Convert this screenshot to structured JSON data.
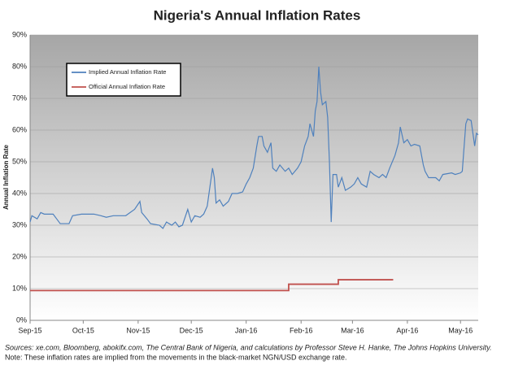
{
  "chart_data": {
    "type": "line",
    "title": "Nigeria's Annual Inflation Rates",
    "y_label": "Annual Inflation Rate",
    "xlim": [
      0,
      253
    ],
    "xticks": [
      {
        "value": 0,
        "label": "Sep-15"
      },
      {
        "value": 30,
        "label": "Oct-15"
      },
      {
        "value": 61,
        "label": "Nov-15"
      },
      {
        "value": 91,
        "label": "Dec-15"
      },
      {
        "value": 122,
        "label": "Jan-16"
      },
      {
        "value": 153,
        "label": "Feb-16"
      },
      {
        "value": 182,
        "label": "Mar-16"
      },
      {
        "value": 213,
        "label": "Apr-16"
      },
      {
        "value": 243,
        "label": "May-16"
      }
    ],
    "ylim": [
      0,
      90
    ],
    "yticks": [
      {
        "value": 0,
        "label": "0%"
      },
      {
        "value": 10,
        "label": "10%"
      },
      {
        "value": 20,
        "label": "20%"
      },
      {
        "value": 30,
        "label": "30%"
      },
      {
        "value": 40,
        "label": "40%"
      },
      {
        "value": 50,
        "label": "50%"
      },
      {
        "value": 60,
        "label": "60%"
      },
      {
        "value": 70,
        "label": "70%"
      },
      {
        "value": 80,
        "label": "80%"
      },
      {
        "value": 90,
        "label": "90%"
      }
    ],
    "grid": true,
    "legend": "upper left",
    "series": [
      {
        "name": "Implied Annual Inflation Rate",
        "color": "#4f81bd",
        "x": [
          0,
          1,
          4,
          6,
          8,
          13,
          15,
          17,
          22,
          24,
          29,
          36,
          40,
          43,
          47,
          54,
          59,
          62,
          63,
          66,
          68,
          73,
          75,
          77,
          80,
          82,
          84,
          86,
          89,
          91,
          93,
          96,
          98,
          100,
          102,
          103,
          104,
          105,
          107,
          109,
          112,
          114,
          117,
          120,
          122,
          124,
          126,
          128,
          129,
          131,
          132,
          134,
          136,
          137,
          139,
          141,
          144,
          146,
          148,
          151,
          153,
          155,
          157,
          158,
          160,
          161,
          162,
          163,
          164,
          165,
          167,
          168,
          169,
          170,
          171,
          173,
          174,
          176,
          178,
          181,
          183,
          185,
          187,
          190,
          192,
          194,
          197,
          199,
          201,
          203,
          206,
          208,
          209,
          211,
          213,
          215,
          217,
          220,
          222,
          223,
          225,
          229,
          231,
          233,
          238,
          240,
          243,
          244,
          246,
          247,
          249,
          251,
          252,
          253
        ],
        "values": [
          31,
          33,
          32,
          34,
          33.5,
          33.5,
          32,
          30.5,
          30.5,
          33,
          33.5,
          33.5,
          33,
          32.5,
          33,
          33,
          35,
          37.5,
          34,
          32,
          30.5,
          30,
          29,
          31,
          30,
          31,
          29.5,
          30,
          35,
          31,
          33,
          32.5,
          33.5,
          36,
          44,
          48,
          45,
          37,
          38,
          36,
          37.5,
          40,
          40,
          40.5,
          43,
          45,
          48,
          55,
          58,
          58,
          55,
          53,
          56,
          48,
          47,
          49,
          47,
          48,
          46,
          48,
          50,
          55,
          58,
          62,
          58,
          66,
          69,
          80,
          72,
          68,
          69,
          64,
          50,
          31,
          46,
          46,
          42,
          45,
          41,
          42,
          43,
          45,
          43,
          42,
          47,
          46,
          45,
          46,
          45,
          48,
          52,
          56,
          61,
          56,
          57,
          55,
          55.5,
          55,
          49,
          47,
          45,
          45,
          44,
          46,
          46.5,
          46,
          46.5,
          47,
          62,
          63.5,
          63,
          55,
          59,
          58.5
        ]
      },
      {
        "name": "Official Annual Inflation Rate",
        "color": "#c0504d",
        "drawstyle": "steps-post",
        "x": [
          0,
          146,
          174,
          205
        ],
        "values": [
          9.4,
          11.4,
          12.8,
          12.8
        ]
      }
    ],
    "notes": [
      "Sources: xe.com, Bloomberg, abokifx.com, The Central Bank of Nigeria, and calculations by Professor Steve H. Hanke, The Johns Hopkins University.",
      "Note: These inflation rates are implied from the movements in the black-market NGN/USD exchange rate."
    ]
  }
}
